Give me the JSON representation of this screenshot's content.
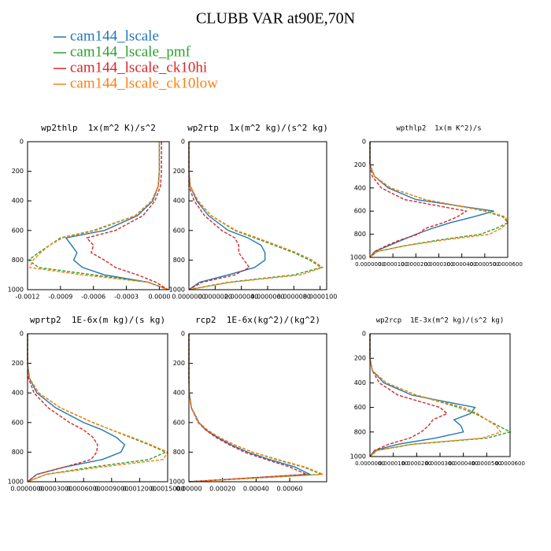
{
  "title": "CLUBB VAR at90E,70N",
  "legend": [
    {
      "name": "cam144_lscale",
      "color": "#1f77b4",
      "dashed": false
    },
    {
      "name": "cam144_lscale_pmf",
      "color": "#2ca02c",
      "dashed": true
    },
    {
      "name": "cam144_lscale_ck10hi",
      "color": "#d62728",
      "dashed": true
    },
    {
      "name": "cam144_lscale_ck10low",
      "color": "#ff7f0e",
      "dashed": true
    }
  ],
  "chart_data": [
    {
      "type": "line",
      "title": "wp2thlp  1x(m^2 K)/s^2",
      "y": [
        0,
        200,
        300,
        400,
        500,
        600,
        650,
        700,
        750,
        800,
        850,
        900,
        950,
        1000
      ],
      "xlim": [
        -0.0012,
        9e-05
      ],
      "xticks": [
        -0.0012,
        -0.0009,
        -0.0006,
        -0.0003,
        {
          "value": 0,
          "label": "0.0000"
        }
      ],
      "ylim": [
        1000,
        0
      ],
      "yticks": [
        0,
        200,
        400,
        600,
        800,
        1000
      ],
      "series": [
        {
          "values": [
            0,
            0,
            -1e-05,
            -6e-05,
            -0.0002,
            -0.0005,
            -0.00085,
            -0.0008,
            -0.00075,
            -0.00078,
            -0.0007,
            -0.0005,
            -0.0001,
            8e-05
          ]
        },
        {
          "values": [
            0,
            0,
            -1e-05,
            -7e-05,
            -0.00022,
            -0.0006,
            -0.0009,
            -0.001,
            -0.0011,
            -0.00119,
            -0.0011,
            -0.0006,
            -0.0001,
            8e-05
          ]
        },
        {
          "values": [
            2e-05,
            2e-05,
            1e-05,
            -4e-05,
            -0.00015,
            -0.0004,
            -0.00066,
            -0.0006,
            -0.00062,
            -0.0005,
            -0.0004,
            -0.0002,
            -3e-05,
            8e-05
          ]
        },
        {
          "values": [
            0,
            0,
            -1e-05,
            -7e-05,
            -0.00022,
            -0.00058,
            -0.00088,
            -0.001,
            -0.00108,
            -0.00115,
            -0.00118,
            -0.0007,
            -0.0001,
            8e-05
          ]
        }
      ]
    },
    {
      "type": "line",
      "title": "wp2rtp  1x(m^2 kg)/(s^2 kg)",
      "y": [
        0,
        200,
        300,
        400,
        500,
        600,
        650,
        700,
        750,
        800,
        850,
        900,
        950,
        1000
      ],
      "xlim": [
        0,
        1.05e-05
      ],
      "xticks": [
        {
          "value": 0,
          "label": "0.0000000"
        },
        {
          "value": 2e-06,
          "label": "0.0000020"
        },
        {
          "value": 4e-06,
          "label": "0.0000040"
        },
        {
          "value": 6e-06,
          "label": "0.0000060"
        },
        {
          "value": 8e-06,
          "label": "0.0000080"
        },
        {
          "value": 1e-05,
          "label": "0.0000100"
        }
      ],
      "ylim": [
        1000,
        0
      ],
      "yticks": [
        0,
        200,
        400,
        600,
        800,
        1000
      ],
      "series": [
        {
          "values": [
            0,
            0,
            1e-07,
            6e-07,
            1.5e-06,
            3e-06,
            4.5e-06,
            5.5e-06,
            5.8e-06,
            5.8e-06,
            5e-06,
            3e-06,
            8e-07,
            0
          ]
        },
        {
          "values": [
            0,
            0,
            1e-07,
            7e-07,
            1.7e-06,
            3.5e-06,
            5e-06,
            6.5e-06,
            8e-06,
            9.2e-06,
            1.01e-05,
            8e-06,
            3e-06,
            0
          ]
        },
        {
          "values": [
            0,
            0,
            0,
            4e-07,
            1.2e-06,
            2.5e-06,
            3.5e-06,
            3.8e-06,
            3.8e-06,
            4.2e-06,
            4.6e-06,
            3.5e-06,
            1e-06,
            0
          ]
        },
        {
          "values": [
            0,
            0,
            1e-07,
            7e-07,
            1.7e-06,
            3.6e-06,
            5.2e-06,
            6.7e-06,
            8.2e-06,
            9.4e-06,
            1.02e-05,
            8.5e-06,
            3.2e-06,
            0
          ]
        }
      ]
    },
    {
      "type": "line",
      "title": "wpthlp2  1x(m K^2)/s",
      "y": [
        0,
        200,
        300,
        400,
        500,
        600,
        650,
        700,
        750,
        800,
        850,
        900,
        950,
        1000
      ],
      "xlim": [
        0,
        6e-05
      ],
      "xticks": [
        {
          "value": 0,
          "label": "0.0000000"
        },
        {
          "value": 1e-05,
          "label": "0.0000100"
        },
        {
          "value": 2e-05,
          "label": "0.0000200"
        },
        {
          "value": 3e-05,
          "label": "0.0000300"
        },
        {
          "value": 4e-05,
          "label": "0.0000400"
        },
        {
          "value": 5e-05,
          "label": "0.0000500"
        },
        {
          "value": 6e-05,
          "label": "0.0000600"
        }
      ],
      "ylim": [
        1000,
        0
      ],
      "yticks": [
        0,
        200,
        400,
        600,
        800,
        1000
      ],
      "series": [
        {
          "values": [
            0,
            0,
            2e-06,
            8e-06,
            2e-05,
            5.4e-05,
            4.5e-05,
            3.5e-05,
            2.7e-05,
            2e-05,
            1.4e-05,
            8e-06,
            2e-06,
            0
          ]
        },
        {
          "values": [
            0,
            0,
            2e-06,
            9e-06,
            2.4e-05,
            5e-05,
            5.8e-05,
            6e-05,
            5.5e-05,
            4.8e-05,
            3e-05,
            1.5e-05,
            3e-06,
            0
          ]
        },
        {
          "values": [
            0,
            0,
            1e-06,
            5e-06,
            1.5e-05,
            4.2e-05,
            3.8e-05,
            3.2e-05,
            2.4e-05,
            2.1e-05,
            1.3e-05,
            7e-06,
            2e-06,
            0
          ]
        },
        {
          "values": [
            0,
            0,
            2e-06,
            9e-06,
            2.4e-05,
            5.1e-05,
            5.9e-05,
            6e-05,
            5.7e-05,
            5.2e-05,
            3.2e-05,
            1.5e-05,
            3e-06,
            0
          ]
        }
      ]
    },
    {
      "type": "line",
      "title": "wprtp2  1E-6x(m kg)/(s kg)",
      "y": [
        0,
        200,
        300,
        400,
        500,
        600,
        650,
        700,
        750,
        800,
        850,
        900,
        950,
        1000
      ],
      "xlim": [
        0,
        0.0015
      ],
      "xticks": [
        {
          "value": 0,
          "label": "0.0000000"
        },
        {
          "value": 0.0003,
          "label": "0.0003000"
        },
        {
          "value": 0.0006,
          "label": "0.0006000"
        },
        {
          "value": 0.0009,
          "label": "0.0009000"
        },
        {
          "value": 0.0012,
          "label": "0.0012000"
        },
        {
          "value": 0.0015,
          "label": "0.0015000"
        }
      ],
      "ylim": [
        1000,
        0
      ],
      "yticks": [
        0,
        200,
        400,
        600,
        800,
        1000
      ],
      "series": [
        {
          "values": [
            0,
            0,
            2e-05,
            0.0001,
            0.0003,
            0.0006,
            0.0008,
            0.00095,
            0.00104,
            0.001,
            0.0008,
            0.0004,
            0.0001,
            0
          ]
        },
        {
          "values": [
            0,
            0,
            2e-05,
            0.00012,
            0.00035,
            0.0007,
            0.0009,
            0.0011,
            0.0013,
            0.00148,
            0.0013,
            0.0007,
            0.0002,
            0
          ]
        },
        {
          "values": [
            0,
            0,
            1e-05,
            7e-05,
            0.00022,
            0.00045,
            0.0006,
            0.0007,
            0.00075,
            0.00074,
            0.00068,
            0.0004,
            0.0001,
            0
          ]
        },
        {
          "values": [
            0,
            0,
            2e-05,
            0.00012,
            0.00035,
            0.0007,
            0.0009,
            0.00112,
            0.00132,
            0.0015,
            0.00145,
            0.0008,
            0.0002,
            0
          ]
        }
      ]
    },
    {
      "type": "line",
      "title": "rcp2  1E-6x(kg^2)/(kg^2)",
      "y": [
        0,
        200,
        300,
        400,
        500,
        600,
        650,
        700,
        750,
        800,
        850,
        900,
        950,
        1000
      ],
      "xlim": [
        0,
        0.00082
      ],
      "xticks": [
        {
          "value": 0,
          "label": "0.00000"
        },
        {
          "value": 0.0002,
          "label": "0.00020"
        },
        {
          "value": 0.0004,
          "label": "0.00040"
        },
        {
          "value": 0.0006,
          "label": "0.00060"
        }
      ],
      "ylim": [
        1000,
        0
      ],
      "yticks": [
        0,
        200,
        400,
        600,
        800,
        1000
      ],
      "series": [
        {
          "values": [
            0,
            0,
            0,
            2e-06,
            1.5e-05,
            6e-05,
            0.0001,
            0.00017,
            0.00025,
            0.00035,
            0.00048,
            0.00063,
            0.00072,
            0
          ]
        },
        {
          "values": [
            0,
            0,
            0,
            2e-06,
            1.5e-05,
            6e-05,
            0.00011,
            0.00018,
            0.00027,
            0.00038,
            0.00052,
            0.00068,
            0.00079,
            0
          ]
        },
        {
          "values": [
            0,
            0,
            0,
            2e-06,
            1.4e-05,
            5.5e-05,
            0.0001,
            0.00016,
            0.00024,
            0.00033,
            0.00046,
            0.0006,
            0.0007,
            0
          ]
        },
        {
          "values": [
            0,
            0,
            0,
            2e-06,
            1.5e-05,
            6e-05,
            0.00011,
            0.00018,
            0.00027,
            0.00038,
            0.00053,
            0.00069,
            0.0008,
            0
          ]
        }
      ]
    },
    {
      "type": "line",
      "title": "wp2rcp  1E-3x(m^2 kg)/(s^2 kg)",
      "y": [
        0,
        200,
        300,
        400,
        500,
        600,
        650,
        700,
        750,
        800,
        850,
        900,
        950,
        1000
      ],
      "xlim": [
        0,
        6e-05
      ],
      "xticks": [
        {
          "value": 0,
          "label": "0.0000000"
        },
        {
          "value": 1e-05,
          "label": "0.0000100"
        },
        {
          "value": 2e-05,
          "label": "0.0000200"
        },
        {
          "value": 3e-05,
          "label": "0.0000300"
        },
        {
          "value": 4e-05,
          "label": "0.0000400"
        },
        {
          "value": 5e-05,
          "label": "0.0000500"
        },
        {
          "value": 6e-05,
          "label": "0.0000600"
        }
      ],
      "ylim": [
        1000,
        0
      ],
      "yticks": [
        0,
        200,
        400,
        600,
        800,
        1000
      ],
      "series": [
        {
          "values": [
            0,
            0,
            1e-06,
            6e-06,
            1.8e-05,
            4.5e-05,
            4.3e-05,
            3.6e-05,
            3.9e-05,
            4e-05,
            2.8e-05,
            1.2e-05,
            2e-06,
            0
          ]
        },
        {
          "values": [
            0,
            0,
            1e-06,
            7e-06,
            2e-05,
            3.8e-05,
            4.5e-05,
            5e-05,
            5.5e-05,
            6e-05,
            5e-05,
            1.8e-05,
            3e-06,
            0
          ]
        },
        {
          "values": [
            0,
            0,
            1e-06,
            4e-06,
            1.2e-05,
            3e-05,
            3.3e-05,
            2.7e-05,
            2.5e-05,
            2.2e-05,
            1.7e-05,
            8e-06,
            2e-06,
            0
          ]
        },
        {
          "values": [
            0,
            0,
            1e-06,
            7e-06,
            2e-05,
            4e-05,
            4.6e-05,
            5e-05,
            5.4e-05,
            5.6e-05,
            4.8e-05,
            1.8e-05,
            3e-06,
            0
          ]
        }
      ]
    }
  ]
}
